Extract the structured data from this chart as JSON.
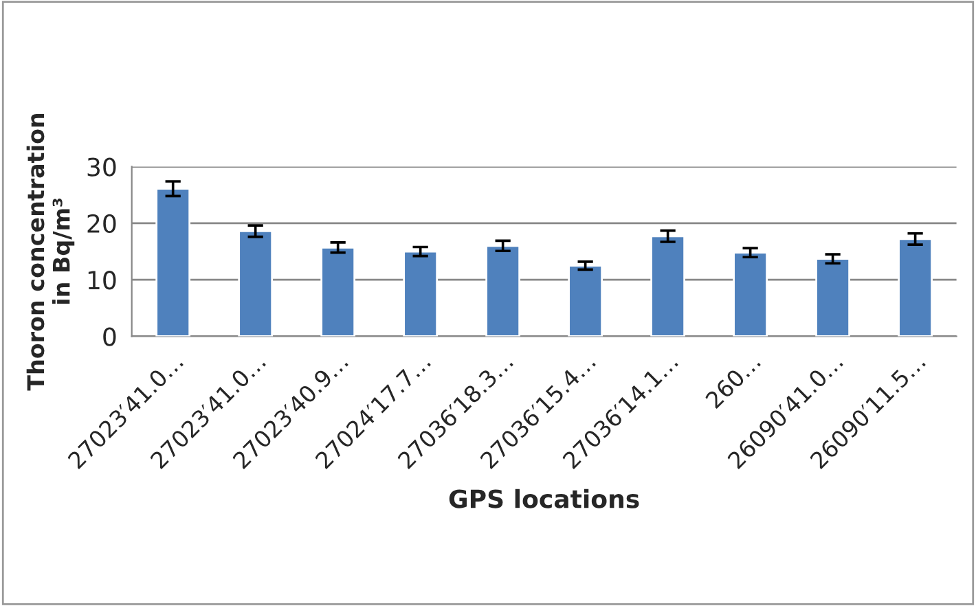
{
  "chart_data": {
    "type": "bar",
    "categories": [
      "27023′41.0…",
      "27023′41.0…",
      "27023′40.9…",
      "27024′17.7…",
      "27036′18.3…",
      "27036′15.4…",
      "27036′14.1…",
      "260…",
      "26090′41.0…",
      "26090′11.5…"
    ],
    "values": [
      26.1,
      18.6,
      15.7,
      15.0,
      16.0,
      12.5,
      17.7,
      14.8,
      13.7,
      17.2
    ],
    "errors": [
      1.3,
      1.0,
      0.9,
      0.8,
      0.9,
      0.7,
      1.0,
      0.8,
      0.8,
      1.0
    ],
    "color": "#4f81bd",
    "xlabel": "GPS locations",
    "ylabel": "Thoron concentration in Bq/m³",
    "ylim": [
      0,
      30
    ],
    "yticks": [
      0,
      10,
      20,
      30
    ],
    "grid": "y"
  }
}
